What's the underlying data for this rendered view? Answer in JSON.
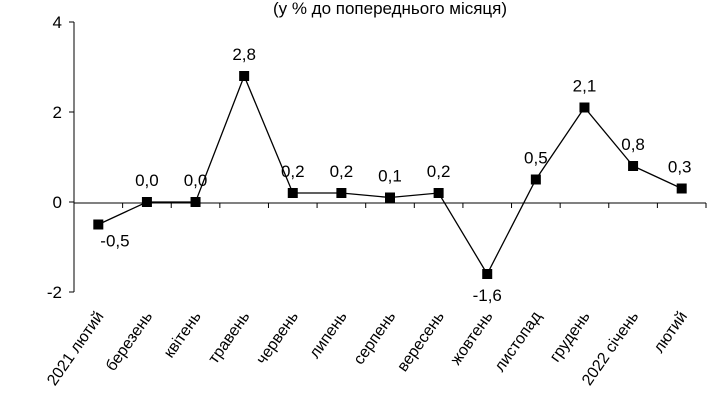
{
  "chart_data": {
    "type": "line",
    "title": "(у % до попереднього місяця)",
    "xlabel": "",
    "ylabel": "",
    "ylim": [
      -2,
      4
    ],
    "y_ticks": [
      "-2",
      "0",
      "2",
      "4"
    ],
    "grid": false,
    "legend": "none",
    "categories": [
      "2021 лютий",
      "березень",
      "квітень",
      "травень",
      "червень",
      "липень",
      "серпень",
      "вересень",
      "жовтень",
      "листопад",
      "грудень",
      "2022 січень",
      "лютий"
    ],
    "series": [
      {
        "values": [
          -0.5,
          0.0,
          0.0,
          2.8,
          0.2,
          0.2,
          0.1,
          0.2,
          -1.6,
          0.5,
          2.1,
          0.8,
          0.3
        ],
        "labels": [
          "-0,5",
          "0,0",
          "0,0",
          "2,8",
          "0,2",
          "0,2",
          "0,1",
          "0,2",
          "-1,6",
          "0,5",
          "2,1",
          "0,8",
          "0,3"
        ],
        "color": "#000000",
        "marker": "square"
      }
    ]
  }
}
